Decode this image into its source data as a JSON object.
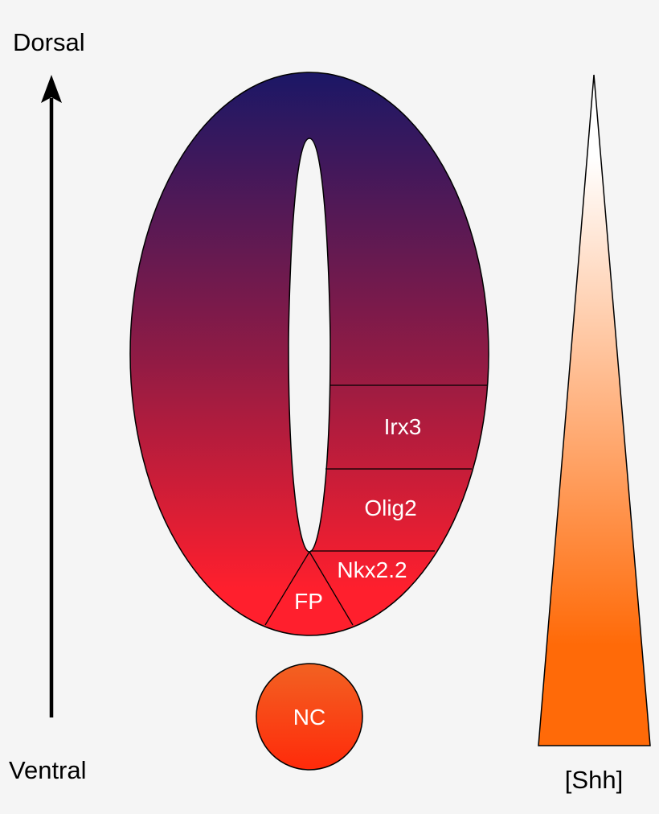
{
  "axis": {
    "top_label": "Dorsal",
    "bottom_label": "Ventral"
  },
  "neural_tube": {
    "domains": [
      {
        "label": "Irx3"
      },
      {
        "label": "Olig2"
      },
      {
        "label": "Nkx2.2"
      },
      {
        "label": "FP"
      }
    ],
    "gradient_colors": {
      "dorsal": "#1b1766",
      "middle": "#8e1b45",
      "ventral": "#ff1f2d"
    }
  },
  "notochord": {
    "label": "NC",
    "colors": {
      "top": "#f26222",
      "bottom": "#ff2a0a"
    }
  },
  "shh_gradient": {
    "label": "[Shh]",
    "colors": {
      "top": "#ffffff",
      "bottom": "#ff6a08"
    }
  }
}
